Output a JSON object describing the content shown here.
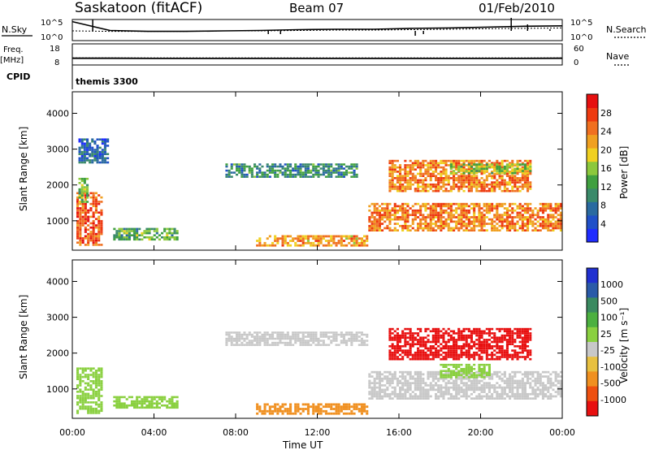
{
  "header": {
    "site": "Saskatoon (fitACF)",
    "beam": "Beam 07",
    "date": "01/Feb/2010"
  },
  "labels": {
    "nsky": "N.Sky",
    "nsearch": "N.Search",
    "freq_1": "Freq.",
    "freq_2": "[MHz]",
    "nave": "Nave",
    "cpid": "CPID",
    "cpid_value": "themis 3300",
    "exp_tick": "10^5",
    "zero_tick": "10^0"
  },
  "colors": {
    "power_scale": [
      "#1f2cff",
      "#2050c8",
      "#2a6aa0",
      "#3a8a6a",
      "#40a040",
      "#8cc83c",
      "#f0d020",
      "#f0a020",
      "#f07020",
      "#ee3a10",
      "#e61010"
    ],
    "velocity_scale": [
      "#2030d0",
      "#2a5aa8",
      "#3a8a60",
      "#4cb040",
      "#8ad040",
      "#c8c8c8",
      "#e8c040",
      "#f09020",
      "#ee5010",
      "#e81010"
    ]
  },
  "chart_data": [
    {
      "type": "line",
      "title": "N.Sky / N.Search",
      "x": [
        "00:00",
        "01:00",
        "02:00",
        "04:00",
        "06:00",
        "08:00",
        "10:00",
        "12:00",
        "14:00",
        "16:00",
        "18:00",
        "20:00",
        "22:00",
        "24:00"
      ],
      "series": [
        {
          "name": "N.Sky",
          "values": [
            4.5,
            2.4,
            2.2,
            2.2,
            2.3,
            2.4,
            2.6,
            2.7,
            2.7,
            2.9,
            3.0,
            3.2,
            3.4,
            3.5
          ]
        },
        {
          "name": "N.Search",
          "values": [
            2.3,
            2.2,
            2.2,
            2.2,
            2.3,
            2.3,
            2.4,
            2.5,
            2.5,
            2.6,
            2.7,
            2.8,
            2.9,
            3.0
          ]
        }
      ],
      "yticks": [
        "10^0",
        "10^5"
      ]
    },
    {
      "type": "line",
      "title": "Freq. [MHz] / Nave",
      "x": [
        "00:00",
        "02:00",
        "04:00",
        "06:00",
        "08:00",
        "10:00",
        "12:00",
        "14:00",
        "16:00",
        "18:00",
        "20:00",
        "22:00",
        "24:00"
      ],
      "series": [
        {
          "name": "Freq.",
          "values": [
            11.2,
            11.2,
            11.1,
            11.1,
            11.1,
            11.1,
            11.1,
            11.1,
            11.1,
            11.1,
            11.1,
            11.1,
            11.2
          ]
        },
        {
          "name": "Nave",
          "values": [
            20,
            20,
            20,
            20,
            20,
            20,
            20,
            20,
            20,
            20,
            20,
            20,
            20
          ]
        }
      ],
      "yticks_left": [
        8,
        18
      ],
      "yticks_right": [
        0,
        60
      ]
    },
    {
      "type": "heatmap",
      "title": "Power",
      "xlabel": "",
      "ylabel": "Slant Range [km]",
      "xlim": [
        0,
        24
      ],
      "ylim": [
        180,
        4600
      ],
      "yticks": [
        1000,
        2000,
        3000,
        4000
      ],
      "colorbar_label": "Power [dB]",
      "colorbar_ticks": [
        4,
        8,
        12,
        16,
        20,
        24,
        28
      ],
      "colorbar_range": [
        0,
        32
      ],
      "regions": [
        {
          "t0": 0.2,
          "t1": 1.5,
          "r0": 300,
          "r1": 1800,
          "v": 26
        },
        {
          "t0": 0.3,
          "t1": 0.8,
          "r0": 1500,
          "r1": 2200,
          "v": 14
        },
        {
          "t0": 2.0,
          "t1": 5.2,
          "r0": 450,
          "r1": 800,
          "v": 13
        },
        {
          "t0": 7.5,
          "t1": 14.0,
          "r0": 2200,
          "r1": 2600,
          "v": 10
        },
        {
          "t0": 9.0,
          "t1": 14.5,
          "r0": 280,
          "r1": 600,
          "v": 22
        },
        {
          "t0": 14.5,
          "t1": 24.0,
          "r0": 700,
          "r1": 1500,
          "v": 24
        },
        {
          "t0": 15.5,
          "t1": 22.5,
          "r0": 1800,
          "r1": 2700,
          "v": 24
        },
        {
          "t0": 18.5,
          "t1": 22.5,
          "r0": 2300,
          "r1": 2600,
          "v": 16
        },
        {
          "t0": 0.3,
          "t1": 1.8,
          "r0": 2600,
          "r1": 3300,
          "v": 6
        }
      ]
    },
    {
      "type": "heatmap",
      "title": "Velocity",
      "xlabel": "Time UT",
      "ylabel": "Slant Range [km]",
      "xlim": [
        0,
        24
      ],
      "ylim": [
        180,
        4600
      ],
      "yticks": [
        1000,
        2000,
        3000,
        4000
      ],
      "xticks": [
        "00:00",
        "04:00",
        "08:00",
        "12:00",
        "16:00",
        "20:00",
        "00:00"
      ],
      "colorbar_label": "Velocity [m s⁻¹]",
      "colorbar_ticks": [
        1000,
        500,
        100,
        25,
        -25,
        -100,
        -500,
        -1000
      ],
      "regions": [
        {
          "t0": 0.2,
          "t1": 1.5,
          "r0": 300,
          "r1": 1600,
          "v": 60
        },
        {
          "t0": 2.0,
          "t1": 5.2,
          "r0": 450,
          "r1": 800,
          "v": 80
        },
        {
          "t0": 7.5,
          "t1": 14.5,
          "r0": 2200,
          "r1": 2600,
          "v": 0
        },
        {
          "t0": 9.0,
          "t1": 14.5,
          "r0": 280,
          "r1": 600,
          "v": -150
        },
        {
          "t0": 14.5,
          "t1": 24.0,
          "r0": 700,
          "r1": 1500,
          "v": 0
        },
        {
          "t0": 15.5,
          "t1": 22.5,
          "r0": 1800,
          "r1": 2700,
          "v": -600
        },
        {
          "t0": 18.0,
          "t1": 20.5,
          "r0": 1300,
          "r1": 1700,
          "v": 90
        }
      ]
    }
  ]
}
